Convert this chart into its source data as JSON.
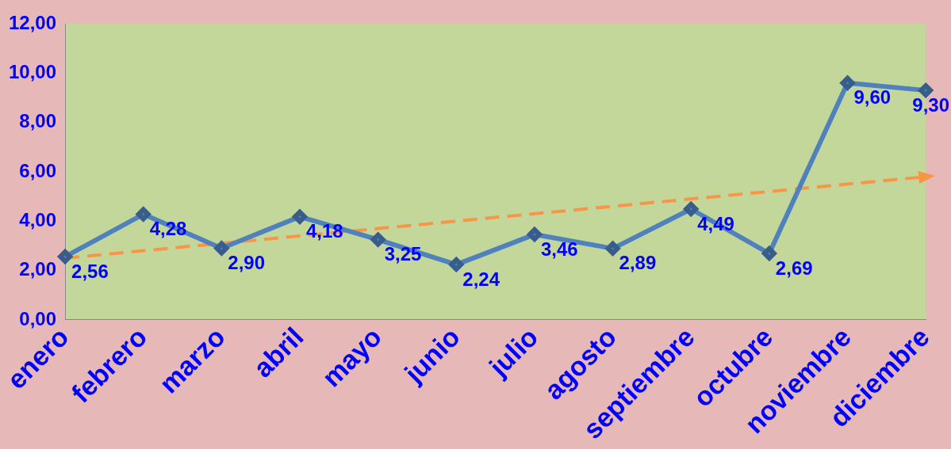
{
  "chart_data": {
    "type": "line",
    "categories": [
      "enero",
      "febrero",
      "marzo",
      "abril",
      "mayo",
      "junio",
      "julio",
      "agosto",
      "septiembre",
      "octubre",
      "noviembre",
      "diciembre"
    ],
    "series": [
      {
        "color": "#4f81bd",
        "values": [
          2.56,
          4.28,
          2.9,
          4.18,
          3.25,
          2.24,
          3.46,
          2.89,
          4.49,
          2.69,
          9.6,
          9.3
        ],
        "value_labels": [
          "2,56",
          "4,28",
          "2,90",
          "4,18",
          "3,25",
          "2,24",
          "3,46",
          "2,89",
          "4,49",
          "2,69",
          "9,60",
          "9,30"
        ],
        "marker": "diamond",
        "line_style": "solid"
      },
      {
        "type": "line",
        "color": "#f79646",
        "x": [
          "enero",
          "diciembre"
        ],
        "values": [
          2.5,
          5.8
        ],
        "line_style": "dashed"
      }
    ],
    "ylim": [
      0,
      12
    ],
    "yticks": [
      {
        "value": 0,
        "label": "0,00"
      },
      {
        "value": 2,
        "label": "2,00"
      },
      {
        "value": 4,
        "label": "4,00"
      },
      {
        "value": 6,
        "label": "6,00"
      },
      {
        "value": 8,
        "label": "8,00"
      },
      {
        "value": 10,
        "label": "10,00"
      },
      {
        "value": 12,
        "label": "12,00"
      }
    ],
    "grid": false,
    "legend": false
  }
}
